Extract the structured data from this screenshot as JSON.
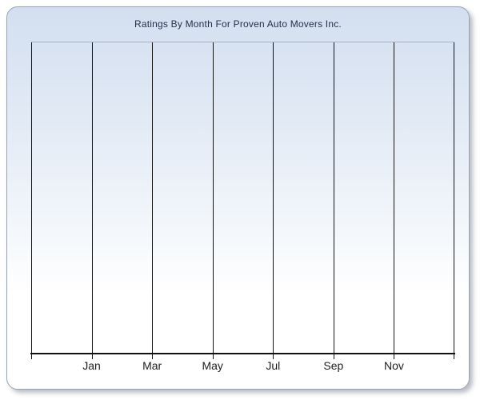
{
  "panel": {
    "border_color": "#99a1ad",
    "background_top_color": "#d3dff0",
    "background_bottom_color": "#ffffff",
    "shadow_color": "rgba(115,125,140,0.5)"
  },
  "chart_data": {
    "type": "line",
    "title": "Ratings By Month For Proven Auto Movers Inc.",
    "title_color": "#233049",
    "series": [],
    "categories": [],
    "x_tick_labels": [
      "Jan",
      "Mar",
      "May",
      "Jul",
      "Sep",
      "Nov"
    ],
    "x_gridline_count": 8,
    "gridline_color": "#161616",
    "axis_line_color": "#111111",
    "tick_label_color": "#1d1d1d",
    "grid": "vertical-major-only",
    "y_axis_labels_visible": false,
    "legend_visible": false
  }
}
